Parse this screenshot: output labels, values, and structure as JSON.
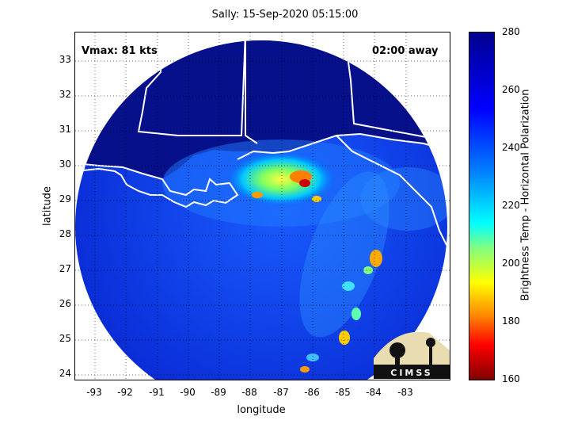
{
  "title": "Sally: 15-Sep-2020 05:15:00",
  "vmax_label": "Vmax: 81 kts",
  "time_away": "02:00 away",
  "xlabel": "longitude",
  "ylabel": "latitude",
  "x_ticks": [
    "-93",
    "-92",
    "-91",
    "-90",
    "-89",
    "-88",
    "-87",
    "-86",
    "-85",
    "-84",
    "-83"
  ],
  "y_ticks": [
    "33",
    "32",
    "31",
    "30",
    "29",
    "28",
    "27",
    "26",
    "25",
    "24"
  ],
  "colorbar": {
    "label": "Brightness Temp - Horizontal Polarization",
    "ticks": [
      "280",
      "260",
      "240",
      "220",
      "200",
      "180",
      "160"
    ]
  },
  "logo_text": "CIMSS",
  "colors": {
    "cold": "#800000",
    "mid": "#ffff00",
    "warm": "#00008f",
    "coast": "#ffffff"
  }
}
